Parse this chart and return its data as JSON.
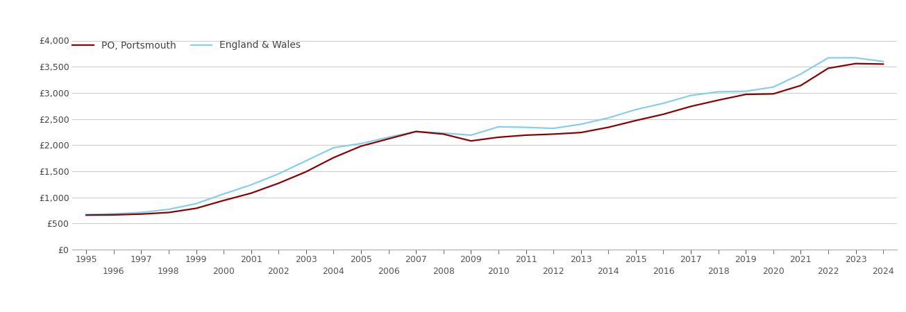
{
  "portsmouth_years": [
    1995,
    1996,
    1997,
    1998,
    1999,
    2000,
    2001,
    2002,
    2003,
    2004,
    2005,
    2006,
    2007,
    2008,
    2009,
    2010,
    2011,
    2012,
    2013,
    2014,
    2015,
    2016,
    2017,
    2018,
    2019,
    2020,
    2021,
    2022,
    2023,
    2024
  ],
  "portsmouth_values": [
    660,
    665,
    680,
    710,
    790,
    940,
    1080,
    1270,
    1490,
    1760,
    1980,
    2120,
    2260,
    2210,
    2080,
    2150,
    2190,
    2210,
    2240,
    2340,
    2470,
    2590,
    2740,
    2860,
    2970,
    2980,
    3140,
    3470,
    3560,
    3550
  ],
  "england_years": [
    1995,
    1996,
    1997,
    1998,
    1999,
    2000,
    2001,
    2002,
    2003,
    2004,
    2005,
    2006,
    2007,
    2008,
    2009,
    2010,
    2011,
    2012,
    2013,
    2014,
    2015,
    2016,
    2017,
    2018,
    2019,
    2020,
    2021,
    2022,
    2023,
    2024
  ],
  "england_values": [
    670,
    685,
    710,
    770,
    880,
    1065,
    1240,
    1450,
    1700,
    1950,
    2030,
    2150,
    2260,
    2230,
    2190,
    2350,
    2340,
    2320,
    2400,
    2520,
    2680,
    2800,
    2950,
    3020,
    3030,
    3110,
    3360,
    3670,
    3670,
    3600
  ],
  "portsmouth_color": "#8B0000",
  "england_color": "#87CEEB",
  "line_width": 1.6,
  "ylim": [
    0,
    4000
  ],
  "yticks": [
    0,
    500,
    1000,
    1500,
    2000,
    2500,
    3000,
    3500,
    4000
  ],
  "xlim": [
    1994.5,
    2024.5
  ],
  "legend_labels": [
    "PO, Portsmouth",
    "England & Wales"
  ],
  "background_color": "#ffffff",
  "grid_color": "#cccccc",
  "tick_color": "#555555",
  "font_color": "#444444",
  "font_size_ticks": 9,
  "font_size_legend": 10
}
